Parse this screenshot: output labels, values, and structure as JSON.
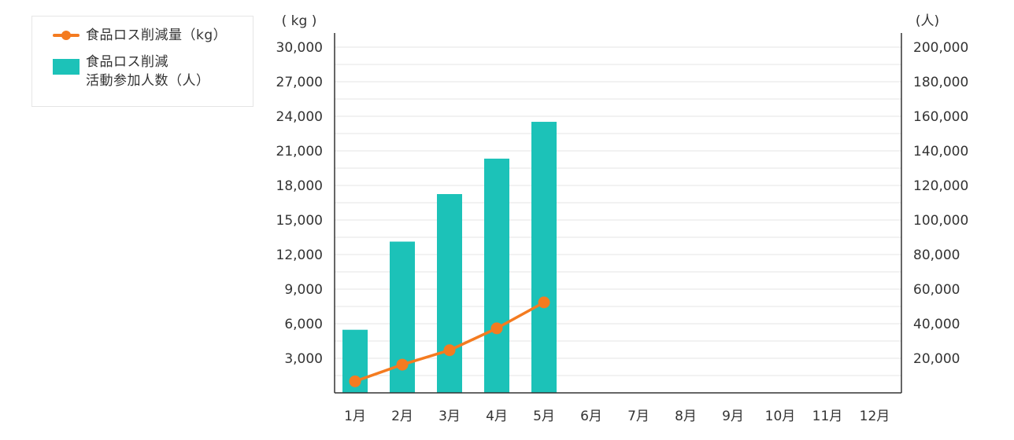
{
  "chart_data": {
    "type": "bar+line",
    "categories": [
      "1月",
      "2月",
      "3月",
      "4月",
      "5月",
      "6月",
      "7月",
      "8月",
      "9月",
      "10月",
      "11月",
      "12月"
    ],
    "series": [
      {
        "name": "食品ロス削減活動参加人数（人）",
        "type": "bar",
        "axis": "right",
        "color": "#1cc2b8",
        "values": [
          36500,
          87500,
          115000,
          135500,
          156800,
          null,
          null,
          null,
          null,
          null,
          null,
          null
        ]
      },
      {
        "name": "食品ロス削減量（kg）",
        "type": "line",
        "axis": "left",
        "color": "#f47b20",
        "values": [
          1000,
          2450,
          3700,
          5600,
          7850,
          null,
          null,
          null,
          null,
          null,
          null,
          null
        ]
      }
    ],
    "left_axis": {
      "unit_label": "( kg )",
      "ylim": [
        0,
        30000
      ],
      "ticks": [
        3000,
        6000,
        9000,
        12000,
        15000,
        18000,
        21000,
        24000,
        27000,
        30000
      ],
      "tick_labels": [
        "3,000",
        "6,000",
        "9,000",
        "12,000",
        "15,000",
        "18,000",
        "21,000",
        "24,000",
        "27,000",
        "30,000"
      ]
    },
    "right_axis": {
      "unit_label": "(人)",
      "ylim": [
        0,
        200000
      ],
      "ticks": [
        20000,
        40000,
        60000,
        80000,
        100000,
        120000,
        140000,
        160000,
        180000,
        200000
      ],
      "tick_labels": [
        "20,000",
        "40,000",
        "60,000",
        "80,000",
        "100,000",
        "120,000",
        "140,000",
        "160,000",
        "180,000",
        "200,000"
      ]
    },
    "grid": true,
    "legend_position": "top-left"
  },
  "legend": {
    "line_label": "食品ロス削減量（kg）",
    "bar_label_line1": "食品ロス削減",
    "bar_label_line2": "活動参加人数（人）"
  }
}
